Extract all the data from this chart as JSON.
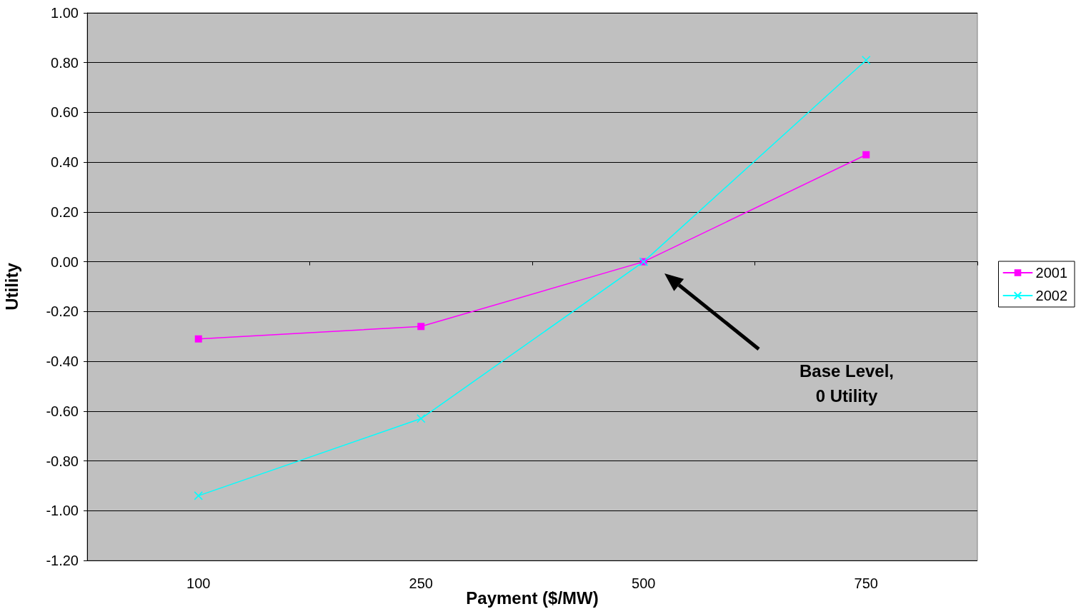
{
  "chart_data": {
    "type": "line",
    "xlabel": "Payment ($/MW)",
    "ylabel": "Utility",
    "categories": [
      "100",
      "250",
      "500",
      "750"
    ],
    "series": [
      {
        "name": "2001",
        "color": "#ff00ff",
        "marker": "square",
        "values": [
          -0.31,
          -0.26,
          0,
          0.43
        ]
      },
      {
        "name": "2002",
        "color": "#00ffff",
        "marker": "cross",
        "values": [
          -0.94,
          -0.63,
          0,
          0.81
        ]
      }
    ],
    "ylim": [
      -1.2,
      1.0
    ],
    "yticks": [
      {
        "value": -1.2,
        "label": "-1.20"
      },
      {
        "value": -1.0,
        "label": "-1.00"
      },
      {
        "value": -0.8,
        "label": "-0.80"
      },
      {
        "value": -0.6,
        "label": "-0.60"
      },
      {
        "value": -0.4,
        "label": "-0.40"
      },
      {
        "value": -0.2,
        "label": "-0.20"
      },
      {
        "value": 0,
        "label": "0.00"
      },
      {
        "value": 0.2,
        "label": "0.20"
      },
      {
        "value": 0.4,
        "label": "0.40"
      },
      {
        "value": 0.6,
        "label": "0.60"
      },
      {
        "value": 0.8,
        "label": "0.80"
      },
      {
        "value": 1.0,
        "label": "1.00"
      }
    ],
    "grid": "y",
    "legend": "right",
    "annotations": [
      "Base Level,\n0 Utility"
    ]
  }
}
